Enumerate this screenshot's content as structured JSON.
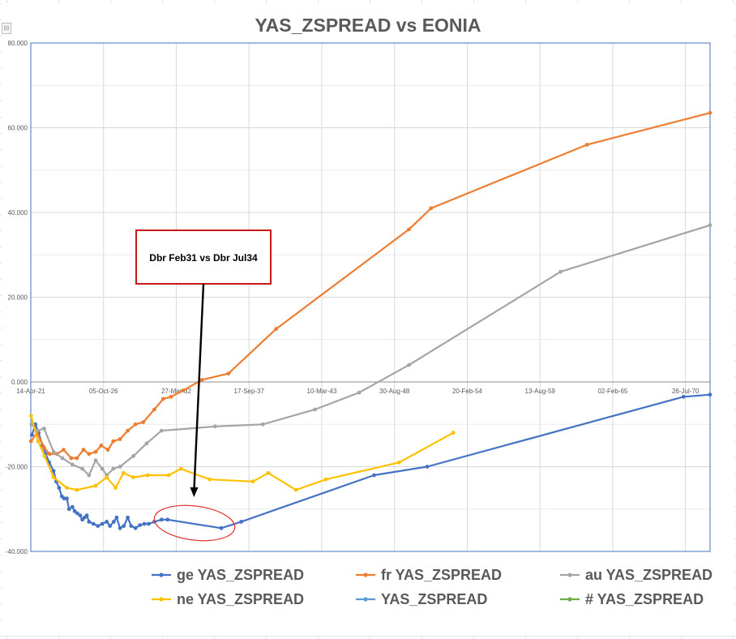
{
  "chart_data": {
    "type": "line",
    "title": "YAS_ZSPREAD vs EONIA",
    "xlabel": "",
    "ylabel": "",
    "ylim": [
      -40,
      80
    ],
    "y_ticks": [
      80,
      60,
      40,
      20,
      0,
      -20,
      -40
    ],
    "y_tick_labels": [
      "80.000",
      "60.000",
      "40.000",
      "20.000",
      "0.000",
      "-20.000",
      "-40.000"
    ],
    "xlim": [
      "2021-04-14",
      "2072-06-01"
    ],
    "x_tick_labels": [
      "14-Apr-21",
      "05-Oct-26",
      "27-Mar-32",
      "17-Sep-37",
      "10-Mar-43",
      "30-Aug-48",
      "20-Feb-54",
      "13-Aug-59",
      "02-Feb-65",
      "26-Jul-70"
    ],
    "x_ticks": [
      "2021-04-14",
      "2026-10-05",
      "2032-03-27",
      "2037-09-17",
      "2043-03-10",
      "2048-08-30",
      "2054-02-20",
      "2059-08-13",
      "2065-02-02",
      "2070-07-26"
    ],
    "grid": true,
    "legend_position": "bottom",
    "series": [
      {
        "name": "ge YAS_ZSPREAD",
        "color": "#4472C4",
        "x": [
          "2021-05-15",
          "2021-08-20",
          "2021-11-15",
          "2022-03-01",
          "2022-06-01",
          "2022-09-01",
          "2023-01-01",
          "2023-03-15",
          "2023-06-01",
          "2023-08-15",
          "2023-10-15",
          "2024-01-01",
          "2024-03-01",
          "2024-06-01",
          "2024-08-01",
          "2024-10-15",
          "2025-01-01",
          "2025-03-01",
          "2025-05-01",
          "2025-07-01",
          "2025-09-01",
          "2026-01-01",
          "2026-05-01",
          "2026-09-01",
          "2027-01-01",
          "2027-04-01",
          "2027-07-15",
          "2027-10-01",
          "2028-01-01",
          "2028-04-15",
          "2028-08-01",
          "2028-11-01",
          "2029-03-01",
          "2029-07-01",
          "2029-11-01",
          "2030-03-01",
          "2030-08-01",
          "2031-02-15",
          "2031-08-01",
          "2035-08-15",
          "2037-02-15",
          "2047-02-15",
          "2051-02-15",
          "2070-06-01",
          "2072-06-01"
        ],
        "values": [
          -12.5,
          -10.0,
          -12.0,
          -15.0,
          -17.0,
          -19.0,
          -21.0,
          -23.5,
          -25.0,
          -27.0,
          -27.5,
          -27.5,
          -30.0,
          -29.5,
          -30.5,
          -31.0,
          -31.5,
          -32.5,
          -32.0,
          -31.5,
          -33.0,
          -33.5,
          -34.0,
          -33.5,
          -33.0,
          -34.0,
          -33.0,
          -32.0,
          -34.5,
          -34.0,
          -32.0,
          -34.0,
          -34.5,
          -33.8,
          -33.5,
          -33.5,
          -33.0,
          -32.5,
          -32.5,
          -34.5,
          -33.0,
          -22.0,
          -20.0,
          -3.5,
          -3.0
        ]
      },
      {
        "name": "fr YAS_ZSPREAD",
        "color": "#ED7D31",
        "x": [
          "2021-04-20",
          "2021-10-01",
          "2022-04-15",
          "2022-09-15",
          "2023-04-01",
          "2023-10-01",
          "2024-05-01",
          "2024-10-01",
          "2025-04-01",
          "2025-09-01",
          "2026-03-01",
          "2026-08-01",
          "2027-02-01",
          "2027-07-01",
          "2028-01-01",
          "2028-08-01",
          "2029-03-01",
          "2029-10-01",
          "2030-08-01",
          "2031-04-01",
          "2031-11-01",
          "2032-10-01",
          "2034-03-01",
          "2036-03-01",
          "2039-10-01",
          "2049-10-01",
          "2051-06-01",
          "2063-03-01",
          "2072-06-01"
        ],
        "values": [
          -14.0,
          -12.0,
          -15.5,
          -17.0,
          -17.0,
          -16.0,
          -18.0,
          -18.0,
          -16.0,
          -17.0,
          -16.5,
          -15.0,
          -16.0,
          -14.0,
          -13.5,
          -11.5,
          -10.0,
          -9.5,
          -6.5,
          -4.0,
          -3.5,
          -2.0,
          0.5,
          2.0,
          12.5,
          36.0,
          41.0,
          56.0,
          63.5
        ]
      },
      {
        "name": "au YAS_ZSPREAD",
        "color": "#A5A5A5",
        "x": [
          "2021-05-01",
          "2021-10-01",
          "2022-04-15",
          "2023-01-01",
          "2023-09-01",
          "2024-06-01",
          "2025-03-01",
          "2025-09-01",
          "2026-03-01",
          "2026-09-01",
          "2027-01-01",
          "2027-07-01",
          "2028-01-01",
          "2029-01-01",
          "2030-01-01",
          "2031-02-15",
          "2035-03-01",
          "2038-10-01",
          "2042-09-01",
          "2046-01-01",
          "2049-10-01",
          "2061-03-01",
          "2072-06-01"
        ],
        "values": [
          -10.0,
          -11.5,
          -11.0,
          -16.5,
          -18.0,
          -19.5,
          -20.5,
          -22.0,
          -18.5,
          -20.5,
          -22.0,
          -20.5,
          -20.0,
          -17.5,
          -14.5,
          -11.5,
          -10.5,
          -10.0,
          -6.5,
          -2.5,
          4.0,
          26.0,
          37.0
        ]
      },
      {
        "name": "ne YAS_ZSPREAD",
        "color": "#FFC000",
        "x": [
          "2021-04-20",
          "2021-11-01",
          "2022-05-01",
          "2023-01-01",
          "2024-01-01",
          "2024-10-01",
          "2026-03-01",
          "2027-01-01",
          "2027-09-01",
          "2028-04-01",
          "2029-01-01",
          "2030-02-01",
          "2031-09-01",
          "2032-08-01",
          "2034-10-01",
          "2038-01-01",
          "2039-03-01",
          "2041-04-01",
          "2043-07-01",
          "2049-01-01",
          "2053-02-01"
        ],
        "values": [
          -8.0,
          -14.0,
          -17.5,
          -22.5,
          -25.0,
          -25.5,
          -24.5,
          -22.5,
          -25.0,
          -21.5,
          -22.5,
          -22.0,
          -22.0,
          -20.5,
          -23.0,
          -23.5,
          -21.5,
          -25.5,
          -23.0,
          -19.0,
          -12.0
        ]
      },
      {
        "name": "YAS_ZSPREAD",
        "color": "#5B9BD5",
        "x": [],
        "values": []
      },
      {
        "name": "# YAS_ZSPREAD",
        "color": "#70AD47",
        "x": [],
        "values": []
      }
    ],
    "annotation": {
      "text": "Dbr Feb31 vs Dbr Jul34",
      "box_color": "#C00000",
      "arrow_color": "#000000",
      "circle_color": "#E53935"
    }
  }
}
